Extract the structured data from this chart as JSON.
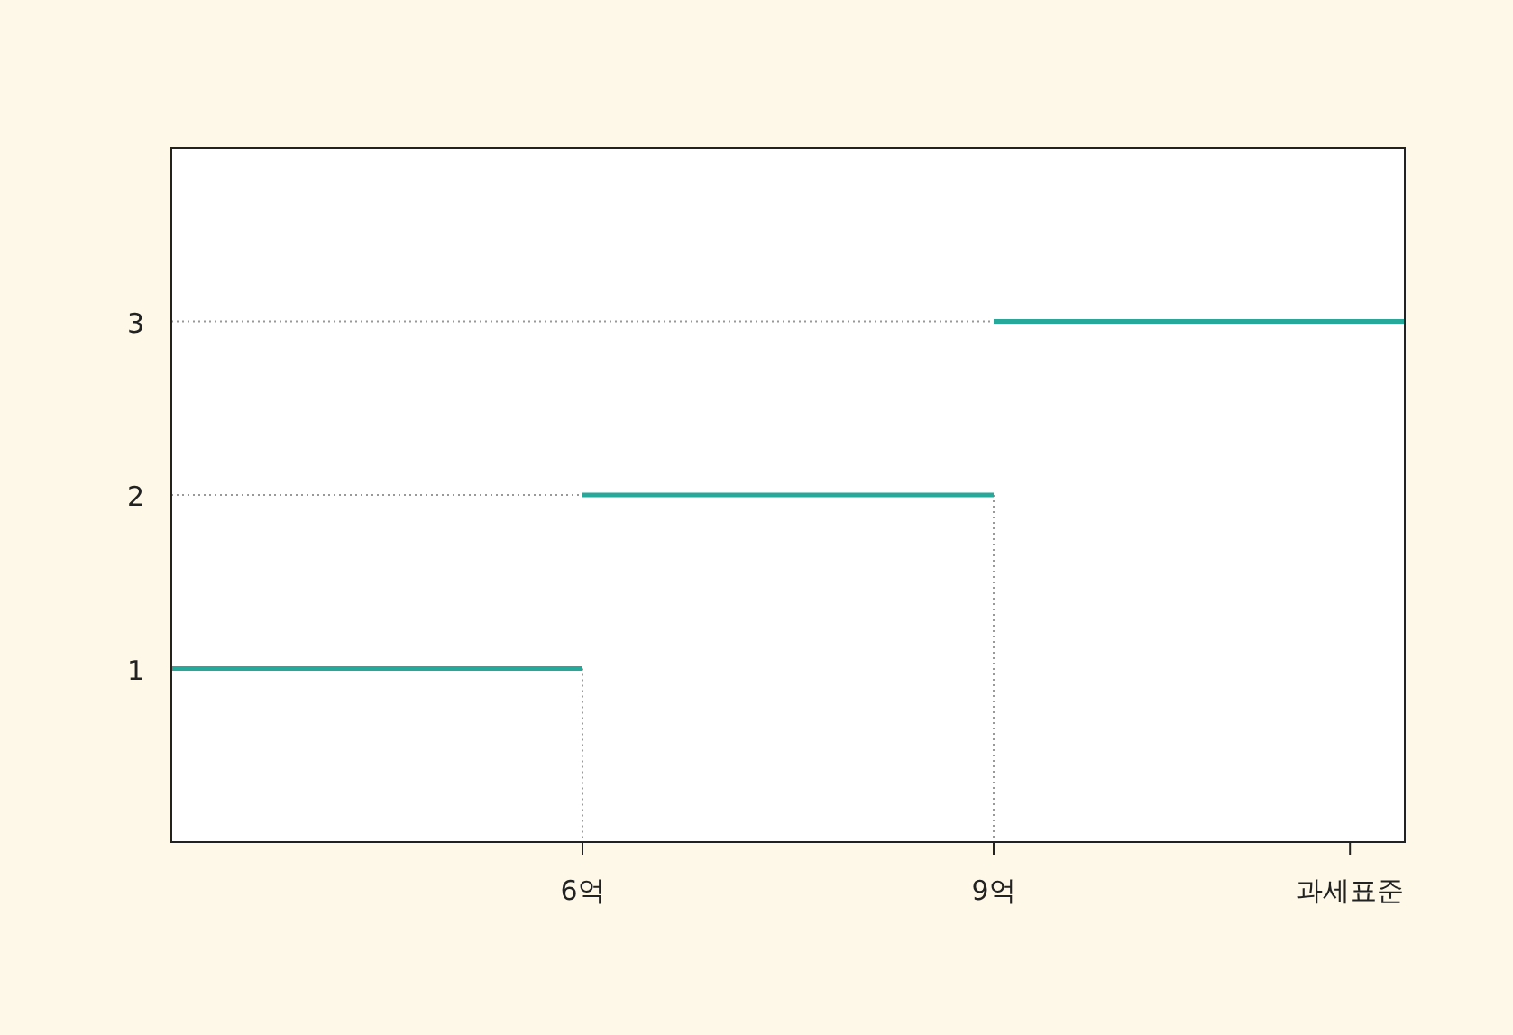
{
  "chart_data": {
    "type": "line",
    "series": [
      {
        "color": "#999999",
        "line_style": "dotted",
        "x": [
          3,
          6
        ],
        "values": [
          2,
          2
        ]
      },
      {
        "color": "#999999",
        "line_style": "dotted",
        "x": [
          6,
          6
        ],
        "values": [
          1,
          0
        ]
      },
      {
        "color": "#999999",
        "line_style": "dotted",
        "x": [
          9,
          9
        ],
        "values": [
          2,
          0
        ]
      },
      {
        "color": "#999999",
        "line_style": "dotted",
        "x": [
          3,
          9
        ],
        "values": [
          3,
          3
        ]
      },
      {
        "color": "#26a99b",
        "x": [
          3,
          6
        ],
        "values": [
          1,
          1
        ]
      },
      {
        "color": "#26a99b",
        "x": [
          6,
          9
        ],
        "values": [
          2,
          2
        ]
      },
      {
        "color": "#26a99b",
        "x": [
          9,
          12
        ],
        "values": [
          3,
          3
        ]
      }
    ],
    "xlim": [
      3,
      12
    ],
    "ylim": [
      0,
      4
    ],
    "xticks": [
      {
        "value": 6,
        "label": "6억"
      },
      {
        "value": 9,
        "label": "9억"
      },
      {
        "value": 11.6,
        "label": "과세표준"
      }
    ],
    "yticks": [
      1,
      2,
      3
    ],
    "grid": false
  }
}
